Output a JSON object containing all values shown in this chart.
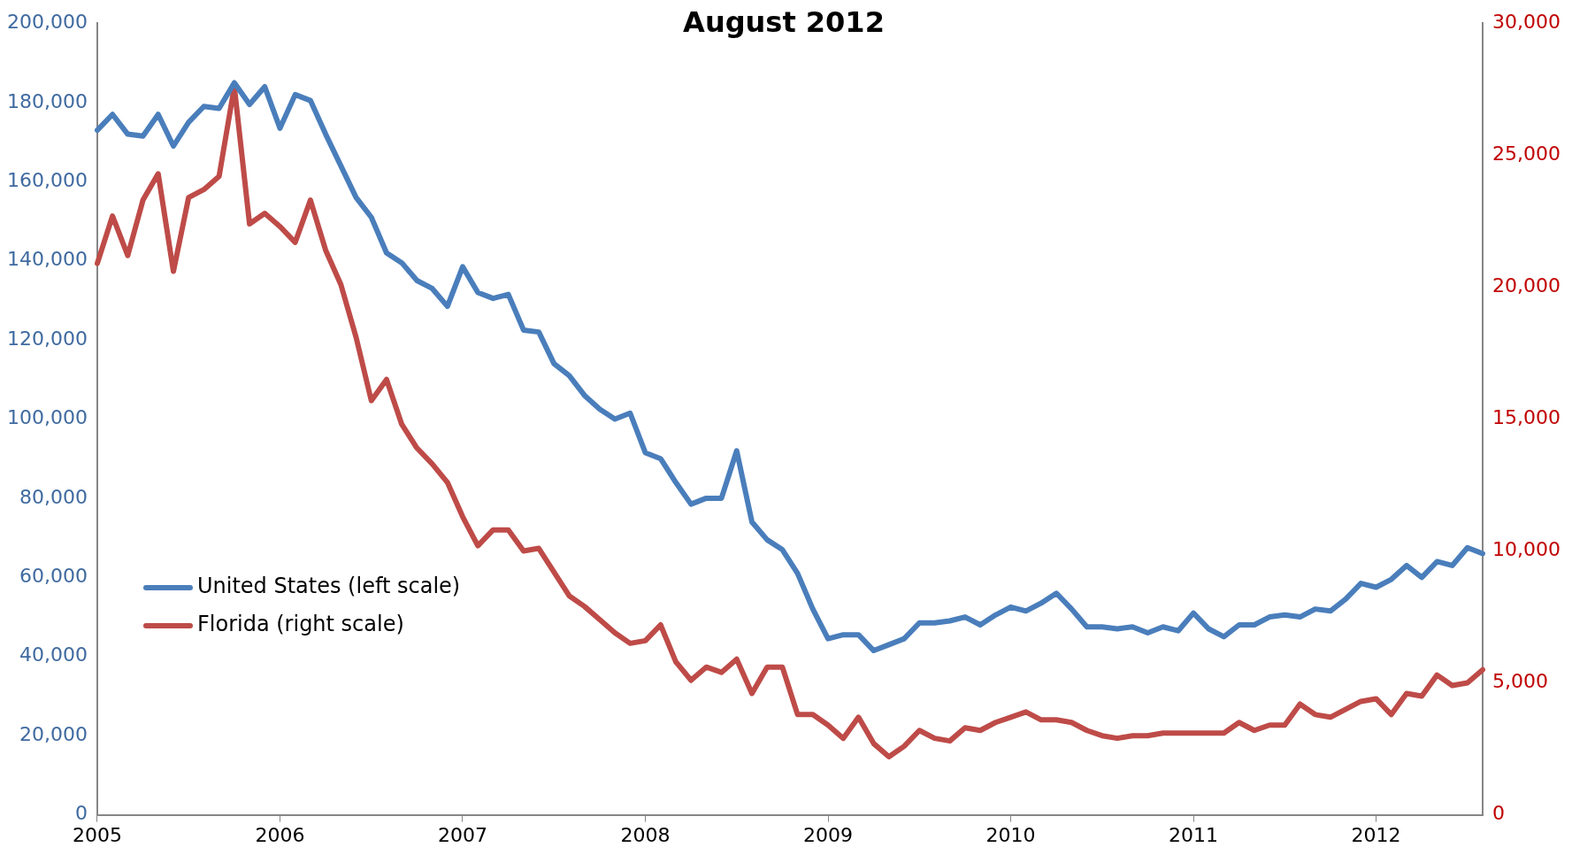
{
  "chart_data": {
    "type": "line",
    "title": "August 2012",
    "legend": "bottom left",
    "grid": false,
    "marker": "none",
    "line_style": "solid",
    "categories": [
      "2005",
      null,
      null,
      null,
      null,
      null,
      null,
      null,
      null,
      null,
      null,
      null,
      "2006",
      null,
      null,
      null,
      null,
      null,
      null,
      null,
      null,
      null,
      null,
      null,
      "2007",
      null,
      null,
      null,
      null,
      null,
      null,
      null,
      null,
      null,
      null,
      null,
      "2008",
      null,
      null,
      null,
      null,
      null,
      null,
      null,
      null,
      null,
      null,
      null,
      "2009",
      null,
      null,
      null,
      null,
      null,
      null,
      null,
      null,
      null,
      null,
      null,
      "2010",
      null,
      null,
      null,
      null,
      null,
      null,
      null,
      null,
      null,
      null,
      null,
      "2011",
      null,
      null,
      null,
      null,
      null,
      null,
      null,
      null,
      null,
      null,
      null,
      "2012",
      null,
      null,
      null,
      null,
      null,
      null,
      null
    ],
    "ylim": [
      0,
      200000
    ],
    "yticks": [
      {
        "value": 0,
        "label": "0"
      },
      {
        "value": 20000,
        "label": "20,000"
      },
      {
        "value": 40000,
        "label": "40,000"
      },
      {
        "value": 60000,
        "label": "60,000"
      },
      {
        "value": 80000,
        "label": "80,000"
      },
      {
        "value": 100000,
        "label": "100,000"
      },
      {
        "value": 120000,
        "label": "120,000"
      },
      {
        "value": 140000,
        "label": "140,000"
      },
      {
        "value": 160000,
        "label": "160,000"
      },
      {
        "value": 180000,
        "label": "180,000"
      },
      {
        "value": 200000,
        "label": "200,000"
      }
    ],
    "y2lim": [
      0,
      30000
    ],
    "y2ticks": [
      {
        "value": 0,
        "label": "0"
      },
      {
        "value": 5000,
        "label": "5,000"
      },
      {
        "value": 10000,
        "label": "10,000"
      },
      {
        "value": 15000,
        "label": "15,000"
      },
      {
        "value": 20000,
        "label": "20,000"
      },
      {
        "value": 25000,
        "label": "25,000"
      },
      {
        "value": 30000,
        "label": "30,000"
      }
    ],
    "series": [
      {
        "name": "United States (left scale)",
        "color": "#4a7ebb",
        "values": [
          173000,
          177000,
          172000,
          171500,
          177000,
          169000,
          175000,
          179000,
          178500,
          185000,
          179500,
          184000,
          173500,
          182000,
          180500,
          172000,
          164000,
          156000,
          151000,
          142000,
          139500,
          135000,
          133000,
          128500,
          138500,
          132000,
          130500,
          131500,
          122500,
          122000,
          114000,
          111000,
          106000,
          102500,
          100000,
          101500,
          91500,
          90000,
          84000,
          78500,
          80000,
          80000,
          92000,
          74000,
          69500,
          67000,
          61000,
          52000,
          44500,
          45500,
          45500,
          41500,
          43000,
          44500,
          48500,
          48500,
          49000,
          50000,
          48000,
          50500,
          52500,
          51500,
          53500,
          56000,
          52000,
          47500,
          47500,
          47000,
          47500,
          46000,
          47500,
          46500,
          51000,
          47000,
          45000,
          48000,
          48000,
          50000,
          50500,
          50000,
          52000,
          51500,
          54500,
          58500,
          57500,
          59500,
          63000,
          60000,
          64000,
          63000,
          67500,
          66000
        ]
      },
      {
        "name": "Florida (right scale)",
        "color": "#be4b48",
        "axis": "y2",
        "values": [
          20900,
          22700,
          21200,
          23300,
          24300,
          20600,
          23400,
          23700,
          24200,
          27600,
          22400,
          22800,
          22300,
          21700,
          23300,
          21400,
          20100,
          18100,
          15700,
          16500,
          14800,
          13900,
          13300,
          12600,
          11300,
          10200,
          10800,
          10800,
          10000,
          10100,
          9200,
          8300,
          7900,
          7400,
          6900,
          6500,
          6600,
          7200,
          5800,
          5100,
          5600,
          5400,
          5900,
          4600,
          5600,
          5600,
          3800,
          3800,
          3400,
          2900,
          3700,
          2700,
          2200,
          2600,
          3200,
          2900,
          2800,
          3300,
          3200,
          3500,
          3700,
          3900,
          3600,
          3600,
          3500,
          3200,
          3000,
          2900,
          3000,
          3000,
          3100,
          3100,
          3100,
          3100,
          3100,
          3500,
          3200,
          3400,
          3400,
          4200,
          3800,
          3700,
          4000,
          4300,
          4400,
          3800,
          4600,
          4500,
          5300,
          4900,
          5000,
          5500
        ]
      }
    ]
  }
}
